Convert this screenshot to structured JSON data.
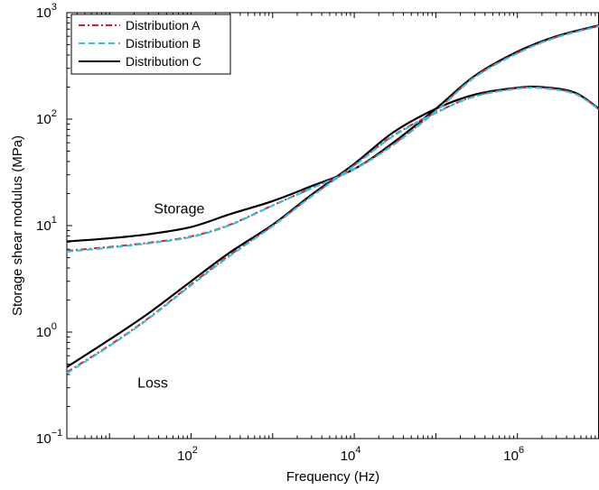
{
  "chart_data": {
    "type": "line",
    "title": "",
    "xlabel": "Frequency (Hz)",
    "ylabel": "Storage shear modulus (MPa)",
    "xscale": "log",
    "yscale": "log",
    "xlim": [
      3,
      10000000
    ],
    "ylim": [
      0.1,
      1000
    ],
    "grid": false,
    "legend_position": "top-left",
    "x_ticks": [
      {
        "value": 100,
        "base": "10",
        "exp": "2"
      },
      {
        "value": 10000,
        "base": "10",
        "exp": "4"
      },
      {
        "value": 1000000,
        "base": "10",
        "exp": "6"
      }
    ],
    "y_ticks": [
      {
        "value": 0.1,
        "base": "10",
        "exp": "−1"
      },
      {
        "value": 1,
        "base": "10",
        "exp": "0"
      },
      {
        "value": 10,
        "base": "10",
        "exp": "1"
      },
      {
        "value": 100,
        "base": "10",
        "exp": "2"
      },
      {
        "value": 1000,
        "base": "10",
        "exp": "3"
      }
    ],
    "annotations": [
      {
        "text": "Storage",
        "x": 35,
        "y": 13
      },
      {
        "text": "Loss",
        "x": 22,
        "y": 0.3
      }
    ],
    "series": [
      {
        "name": "Distribution A",
        "color": "#e8181c",
        "dash": "dashdot",
        "storage": {
          "x": [
            3,
            10,
            30,
            100,
            300,
            1000,
            3000,
            10000,
            30000,
            100000,
            300000,
            1000000,
            3000000,
            10000000
          ],
          "y": [
            5.8,
            6.3,
            6.9,
            7.9,
            10.2,
            15.5,
            22.5,
            34,
            58,
            120,
            250,
            420,
            590,
            750
          ]
        },
        "loss": {
          "x": [
            3,
            10,
            30,
            100,
            300,
            1000,
            3000,
            10000,
            30000,
            100000,
            300000,
            1000000,
            2000000,
            5000000,
            10000000
          ],
          "y": [
            0.42,
            0.75,
            1.35,
            2.8,
            5.3,
            10,
            19,
            37,
            70,
            115,
            165,
            195,
            197,
            175,
            125
          ]
        }
      },
      {
        "name": "Distribution B",
        "color": "#22c6e8",
        "dash": "dashed",
        "storage": {
          "x": [
            3,
            10,
            30,
            100,
            300,
            1000,
            3000,
            10000,
            30000,
            100000,
            300000,
            1000000,
            3000000,
            10000000
          ],
          "y": [
            5.7,
            6.2,
            6.8,
            7.8,
            10.1,
            15.4,
            22.4,
            33.8,
            57,
            118,
            247,
            415,
            585,
            745
          ]
        },
        "loss": {
          "x": [
            3,
            10,
            30,
            100,
            300,
            1000,
            3000,
            10000,
            30000,
            100000,
            300000,
            1000000,
            2000000,
            5000000,
            10000000
          ],
          "y": [
            0.41,
            0.74,
            1.33,
            2.75,
            5.2,
            9.9,
            18.8,
            36.5,
            69,
            114,
            163,
            193,
            195,
            173,
            123
          ]
        }
      },
      {
        "name": "Distribution C",
        "color": "#000000",
        "dash": "solid",
        "storage": {
          "x": [
            3,
            10,
            30,
            100,
            300,
            1000,
            3000,
            10000,
            30000,
            100000,
            300000,
            1000000,
            3000000,
            10000000
          ],
          "y": [
            7.1,
            7.6,
            8.3,
            9.7,
            12.8,
            17,
            23.5,
            34,
            60,
            125,
            255,
            430,
            600,
            760
          ]
        },
        "loss": {
          "x": [
            3,
            10,
            30,
            100,
            300,
            1000,
            3000,
            10000,
            30000,
            100000,
            300000,
            1000000,
            2000000,
            5000000,
            10000000
          ],
          "y": [
            0.47,
            0.85,
            1.5,
            3.0,
            5.6,
            10.2,
            19.5,
            38,
            75,
            125,
            170,
            197,
            200,
            178,
            125
          ]
        }
      }
    ]
  }
}
